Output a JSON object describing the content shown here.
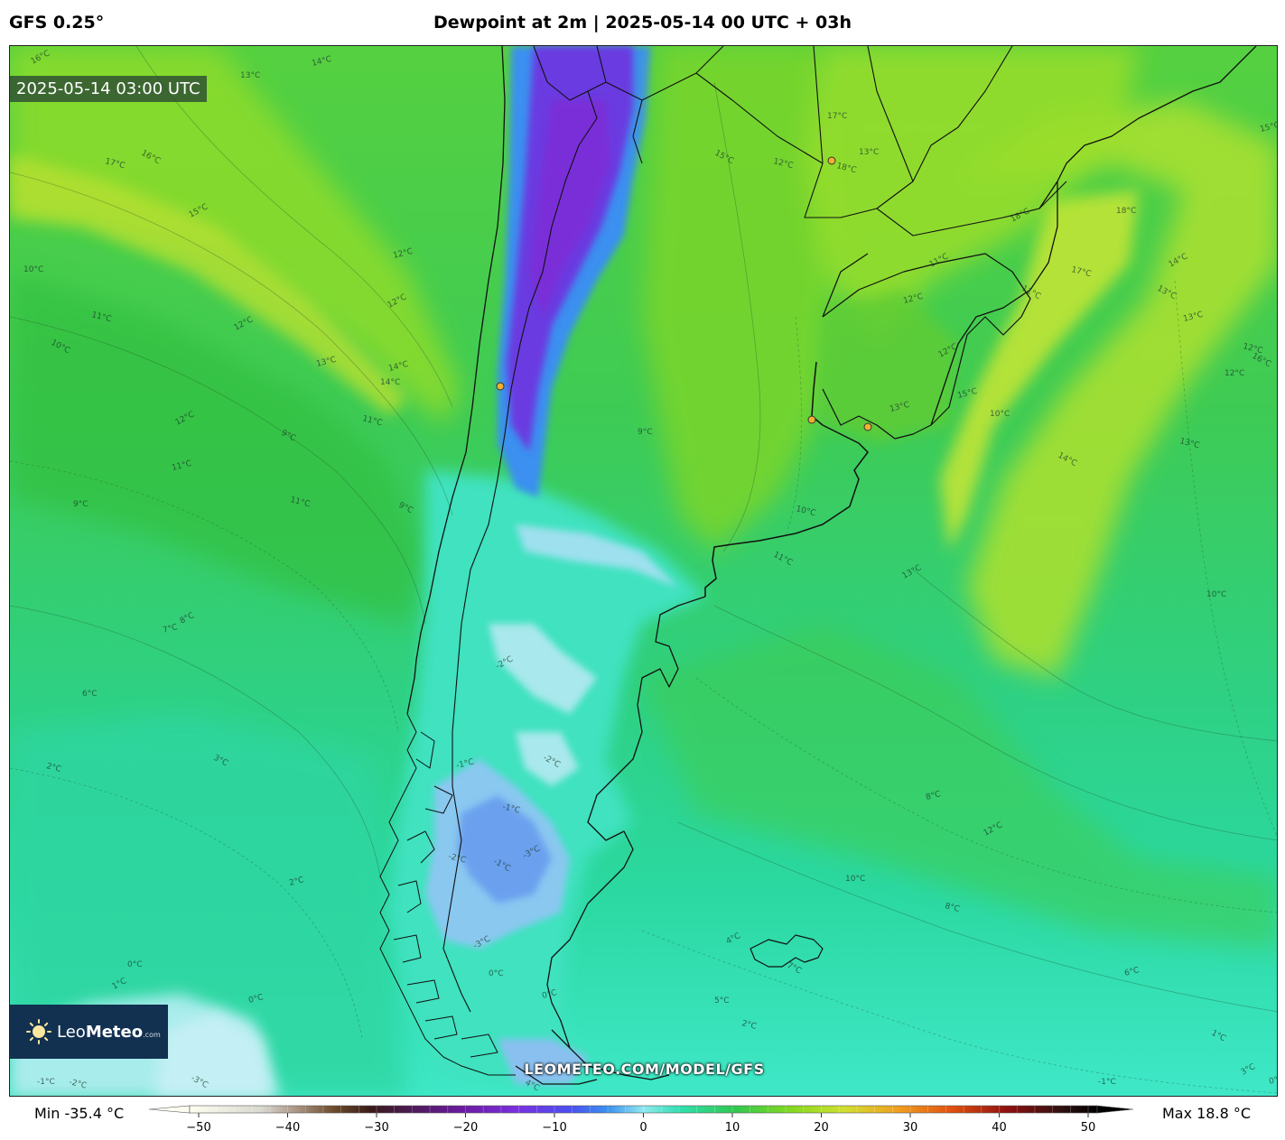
{
  "header": {
    "model": "GFS 0.25°",
    "title": "Dewpoint at 2m | 2025-05-14 00 UTC + 03h"
  },
  "map": {
    "valid_time": "2025-05-14 03:00 UTC",
    "watermark": "LEOMETEO.COM/MODEL/GFS",
    "logo": {
      "name": "LeoMeteo",
      "name_a": "Leo",
      "name_b": "Meteo",
      "domain": ".com",
      "icon": "sun-icon"
    },
    "contour_labels": [
      "16°C",
      "14°C",
      "13°C",
      "17°C",
      "16°C",
      "15°C",
      "12°C",
      "10°C",
      "11°C",
      "10°C",
      "12°C",
      "13°C",
      "14°C",
      "11°C",
      "9°C",
      "12°C",
      "11°C",
      "9°C",
      "11°C",
      "9°C",
      "8°C",
      "7°C",
      "6°C",
      "2°C",
      "3°C",
      "1°C",
      "0°C",
      "-1°C",
      "-2°C",
      "-3°C",
      "-2°C",
      "-1°C",
      "0°C",
      "-2°C",
      "-1°C",
      "-3°C",
      "2°C",
      "0°C",
      "-1°C",
      "-2°C",
      "-3°C",
      "0°C",
      "17°C",
      "18°C",
      "15°C",
      "12°C",
      "14°C",
      "13°C",
      "12°C",
      "11°C",
      "11°C",
      "15°C",
      "18°C",
      "17°C",
      "13°C",
      "14°C",
      "13°C",
      "12°C",
      "12°C",
      "14°C",
      "12°C",
      "13°C",
      "10°C",
      "13°C",
      "11°C",
      "12°C",
      "8°C",
      "10°C",
      "8°C",
      "7°C",
      "4°C",
      "6°C",
      "5°C",
      "2°C",
      "1°C",
      "3°C",
      "0°C",
      "-1°C",
      "-2°C",
      "4°C",
      "18°C",
      "12°C",
      "9°C",
      "10°C",
      "16°C",
      "13°C",
      "15°C",
      "10°C"
    ],
    "colors": {
      "ocean_base": "#40d890",
      "frame": "#222222"
    }
  },
  "colorbar": {
    "min_label": "Min -35.4 °C",
    "max_label": "Max 18.8 °C",
    "ticks": [
      "−50",
      "−40",
      "−30",
      "−20",
      "−10",
      "0",
      "10",
      "20",
      "30",
      "40",
      "50"
    ],
    "range": [
      -50,
      50
    ]
  }
}
